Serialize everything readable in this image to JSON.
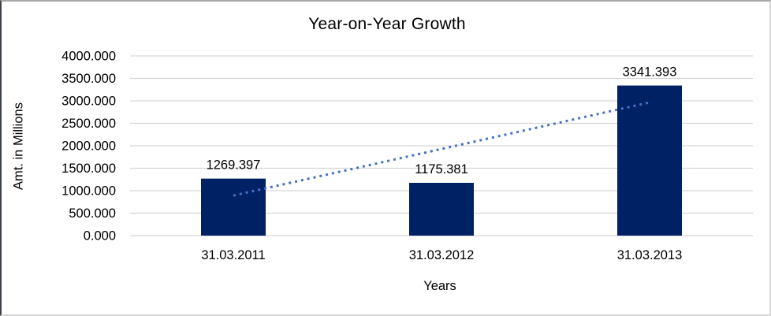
{
  "chart_data": {
    "type": "bar",
    "title": "Year-on-Year Growth",
    "xlabel": "Years",
    "ylabel": "Amt. in Millions",
    "categories": [
      "31.03.2011",
      "31.03.2012",
      "31.03.2013"
    ],
    "values": [
      1269.397,
      1175.381,
      3341.393
    ],
    "data_labels": [
      "1269.397",
      "1175.381",
      "3341.393"
    ],
    "y_ticks": [
      0,
      500,
      1000,
      1500,
      2000,
      2500,
      3000,
      3500,
      4000
    ],
    "y_tick_labels": [
      "0.000",
      "500.000",
      "1000.000",
      "1500.000",
      "2000.000",
      "2500.000",
      "3000.000",
      "3500.000",
      "4000.000"
    ],
    "ylim": [
      0,
      4000
    ],
    "grid": true,
    "legend": "none",
    "colors": {
      "bar": "#002163",
      "trendline": "#4472C4",
      "gridline": "#D6D6D6",
      "text": "#000000"
    },
    "trendline": {
      "type": "linear",
      "style": "dotted",
      "start_value": 892.726,
      "end_value": 2964.722
    }
  }
}
